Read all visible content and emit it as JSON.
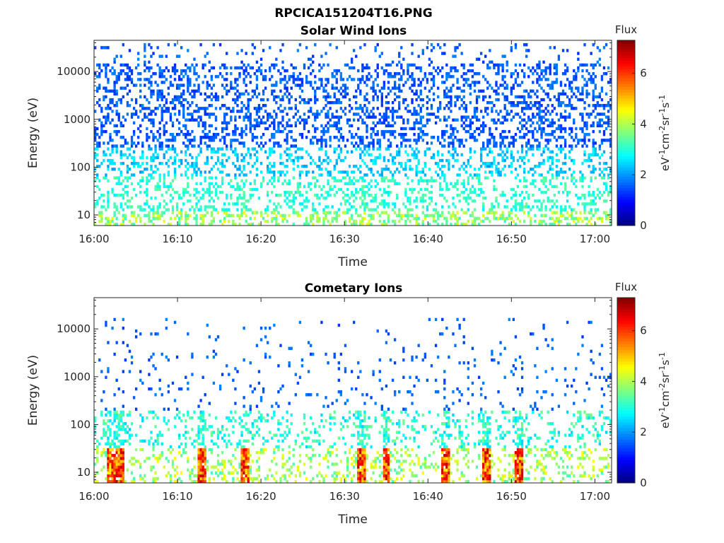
{
  "figure": {
    "title": "RPCICA151204T16.PNG"
  },
  "chart_data": [
    {
      "type": "heatmap",
      "title": "Solar Wind Ions",
      "xlabel": "Time",
      "ylabel": "Energy (eV)",
      "x_range": [
        "16:00",
        "17:02"
      ],
      "x_ticks": [
        "16:00",
        "16:10",
        "16:20",
        "16:30",
        "16:40",
        "16:50",
        "17:00"
      ],
      "y_scale": "log",
      "ylim": [
        6,
        45000
      ],
      "y_ticks": [
        "10",
        "100",
        "1000",
        "10000"
      ],
      "colorbar": {
        "label_top": "Flux",
        "units": "eV-1cm-2sr-1s-1",
        "range": [
          0,
          7.3
        ],
        "ticks": [
          "0",
          "2",
          "4",
          "6"
        ],
        "colormap": "jet"
      },
      "description_bands": [
        {
          "energy_eV": [
            6,
            12
          ],
          "flux_typical": 3.2,
          "flux_max": 5.0
        },
        {
          "energy_eV": [
            12,
            60
          ],
          "flux_typical": 2.8
        },
        {
          "energy_eV": [
            60,
            250
          ],
          "flux_typical": 2.3
        },
        {
          "energy_eV": [
            250,
            40000
          ],
          "flux_typical": 1.5
        }
      ]
    },
    {
      "type": "heatmap",
      "title": "Cometary Ions",
      "xlabel": "Time",
      "ylabel": "Energy (eV)",
      "x_range": [
        "16:00",
        "17:02"
      ],
      "x_ticks": [
        "16:00",
        "16:10",
        "16:20",
        "16:30",
        "16:40",
        "16:50",
        "17:00"
      ],
      "y_scale": "log",
      "ylim": [
        6,
        45000
      ],
      "y_ticks": [
        "10",
        "100",
        "1000",
        "10000"
      ],
      "colorbar": {
        "label_top": "Flux",
        "units": "eV-1cm-2sr-1s-1",
        "range": [
          0,
          7.3
        ],
        "ticks": [
          "0",
          "2",
          "4",
          "6"
        ],
        "colormap": "jet"
      },
      "description_bands": [
        {
          "energy_eV": [
            6,
            30
          ],
          "flux_typical": 4.5,
          "flux_max": 6.8
        },
        {
          "energy_eV": [
            30,
            200
          ],
          "flux_typical": 3.0
        },
        {
          "energy_eV": [
            200,
            16000
          ],
          "flux_typical": 1.6
        }
      ],
      "high_flux_times": [
        "16:02",
        "16:03",
        "16:13",
        "16:18",
        "16:32",
        "16:35",
        "16:42",
        "16:47",
        "16:51"
      ]
    }
  ]
}
